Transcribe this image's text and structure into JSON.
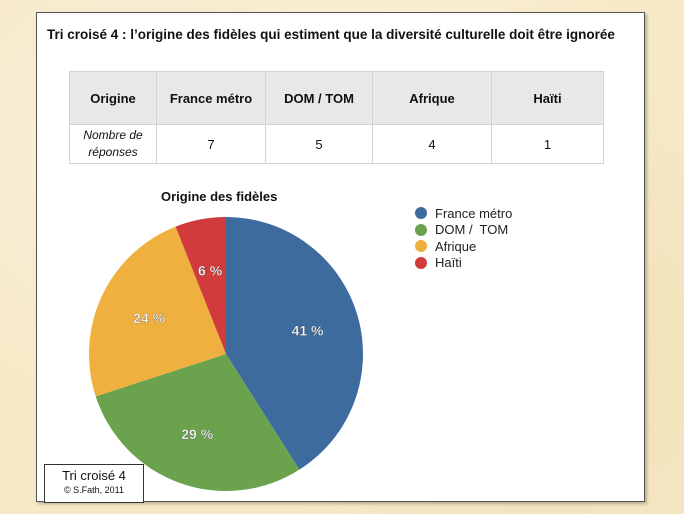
{
  "title": "Tri croisé 4 : l’origine des fidèles qui estiment que la diversité culturelle doit être ignorée",
  "table": {
    "header": [
      "Origine",
      "France métro",
      "DOM /  TOM",
      "Afrique",
      "Haïti"
    ],
    "row_label_line1": "Nombre de",
    "row_label_line2": "réponses",
    "values": [
      "7",
      "5",
      "4",
      "1"
    ]
  },
  "chart_data": {
    "type": "pie",
    "title": "Origine des fidèles",
    "categories": [
      "France métro",
      "DOM /  TOM",
      "Afrique",
      "Haïti"
    ],
    "values": [
      41,
      29,
      24,
      6
    ],
    "labels": [
      "41 %",
      "29 %",
      "24 %",
      "6 %"
    ],
    "colors": [
      "#3e6b9e",
      "#6aa24d",
      "#efb040",
      "#d23b3b"
    ],
    "legend_position": "right"
  },
  "stamp": {
    "main": "Tri croisé 4",
    "sub": "© S.Fath, 2011"
  }
}
